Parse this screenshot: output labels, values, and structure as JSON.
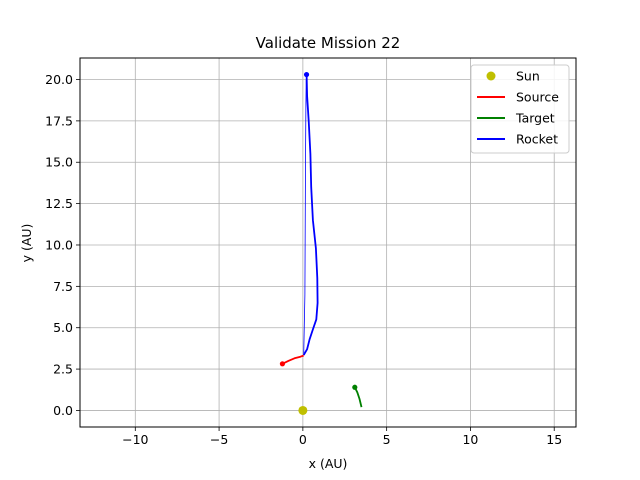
{
  "chart_data": {
    "type": "line",
    "title": "Validate Mission 22",
    "xlabel": "x (AU)",
    "ylabel": "y (AU)",
    "xlim": [
      -13.3,
      16.3
    ],
    "ylim": [
      -1.0,
      21.3
    ],
    "xticks": [
      -10,
      -5,
      0,
      5,
      10,
      15
    ],
    "xtick_labels": [
      "−10",
      "−5",
      "0",
      "5",
      "10",
      "15"
    ],
    "yticks": [
      0.0,
      2.5,
      5.0,
      7.5,
      10.0,
      12.5,
      15.0,
      17.5,
      20.0
    ],
    "ytick_labels": [
      "0.0",
      "2.5",
      "5.0",
      "7.5",
      "10.0",
      "12.5",
      "15.0",
      "17.5",
      "20.0"
    ],
    "grid": true,
    "legend_position": "top-right",
    "sun": {
      "name": "Sun",
      "x": 0.0,
      "y": 0.0,
      "color": "#bfbf00"
    },
    "series": [
      {
        "name": "Source",
        "color": "#ff0000",
        "points": [
          [
            -1.22,
            2.82
          ],
          [
            -0.85,
            3.0
          ],
          [
            -0.5,
            3.15
          ],
          [
            -0.15,
            3.25
          ],
          [
            0.05,
            3.32
          ]
        ],
        "marker_at_start": true
      },
      {
        "name": "Target",
        "color": "#008000",
        "points": [
          [
            3.1,
            1.4
          ],
          [
            3.25,
            1.1
          ],
          [
            3.38,
            0.7
          ],
          [
            3.5,
            0.2
          ]
        ],
        "marker_at_start": true
      },
      {
        "name": "Rocket",
        "color": "#0000ff",
        "points": [
          [
            0.05,
            3.35
          ],
          [
            0.25,
            3.7
          ],
          [
            0.4,
            4.3
          ],
          [
            0.6,
            4.9
          ],
          [
            0.8,
            5.5
          ],
          [
            0.88,
            6.5
          ],
          [
            0.86,
            8.0
          ],
          [
            0.78,
            9.8
          ],
          [
            0.6,
            11.5
          ],
          [
            0.5,
            13.5
          ],
          [
            0.45,
            15.5
          ],
          [
            0.35,
            17.5
          ],
          [
            0.25,
            19.0
          ],
          [
            0.22,
            20.3
          ]
        ],
        "marker_at_end": true
      }
    ],
    "rocket_thin_guide": [
      [
        0.05,
        3.35
      ],
      [
        0.12,
        7.0
      ],
      [
        0.14,
        11.0
      ],
      [
        0.16,
        15.0
      ],
      [
        0.18,
        18.5
      ],
      [
        0.2,
        20.0
      ]
    ]
  }
}
